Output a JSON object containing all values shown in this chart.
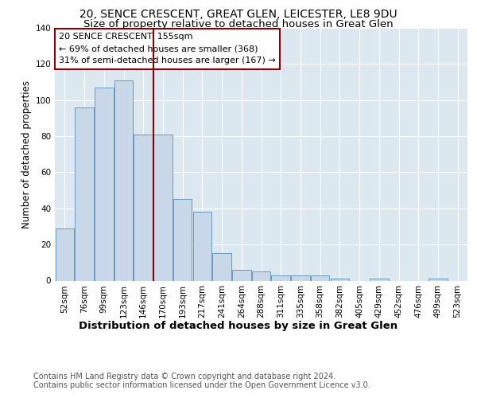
{
  "title1": "20, SENCE CRESCENT, GREAT GLEN, LEICESTER, LE8 9DU",
  "title2": "Size of property relative to detached houses in Great Glen",
  "xlabel": "Distribution of detached houses by size in Great Glen",
  "ylabel": "Number of detached properties",
  "categories": [
    "52sqm",
    "76sqm",
    "99sqm",
    "123sqm",
    "146sqm",
    "170sqm",
    "193sqm",
    "217sqm",
    "241sqm",
    "264sqm",
    "288sqm",
    "311sqm",
    "335sqm",
    "358sqm",
    "382sqm",
    "405sqm",
    "429sqm",
    "452sqm",
    "476sqm",
    "499sqm",
    "523sqm"
  ],
  "values": [
    29,
    96,
    107,
    111,
    81,
    81,
    45,
    38,
    15,
    6,
    5,
    3,
    3,
    3,
    1,
    0,
    1,
    0,
    0,
    1,
    0
  ],
  "bar_color": "#c8d8e8",
  "bar_edge_color": "#6a9abf",
  "vline_x": 4.5,
  "vline_color": "#8b0000",
  "annotation_title": "20 SENCE CRESCENT: 155sqm",
  "annotation_line1": "← 69% of detached houses are smaller (368)",
  "annotation_line2": "31% of semi-detached houses are larger (167) →",
  "annotation_box_color": "#8b0000",
  "ylim": [
    0,
    140
  ],
  "yticks": [
    0,
    20,
    40,
    60,
    80,
    100,
    120,
    140
  ],
  "background_color": "#dce8f0",
  "plot_bg_color": "#dce8f0",
  "footer": "Contains HM Land Registry data © Crown copyright and database right 2024.\nContains public sector information licensed under the Open Government Licence v3.0.",
  "title1_fontsize": 10,
  "title2_fontsize": 9.5,
  "xlabel_fontsize": 9.5,
  "ylabel_fontsize": 8.5,
  "footer_fontsize": 7,
  "annotation_fontsize": 8,
  "tick_fontsize": 7.5
}
